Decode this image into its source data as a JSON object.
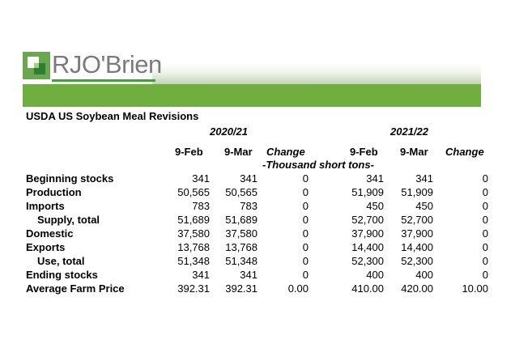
{
  "brand": {
    "logo_text": "RJO'Brien"
  },
  "table": {
    "title": "USDA US Soybean Meal Revisions",
    "year_a": "2020/21",
    "year_b": "2021/22",
    "columns": [
      "9-Feb",
      "9-Mar",
      "Change",
      "9-Feb",
      "9-Mar",
      "Change"
    ],
    "units": "-Thousand short tons-",
    "rows": [
      {
        "label": "Beginning stocks",
        "values": [
          "341",
          "341",
          "0",
          "341",
          "341",
          "0"
        ]
      },
      {
        "label": "Production",
        "values": [
          "50,565",
          "50,565",
          "0",
          "51,909",
          "51,909",
          "0"
        ]
      },
      {
        "label": "Imports",
        "values": [
          "783",
          "783",
          "0",
          "450",
          "450",
          "0"
        ]
      },
      {
        "label": "Supply, total",
        "values": [
          "51,689",
          "51,689",
          "0",
          "52,700",
          "52,700",
          "0"
        ]
      },
      {
        "label": "Domestic",
        "values": [
          "37,580",
          "37,580",
          "0",
          "37,900",
          "37,900",
          "0"
        ]
      },
      {
        "label": "Exports",
        "values": [
          "13,768",
          "13,768",
          "0",
          "14,400",
          "14,400",
          "0"
        ]
      },
      {
        "label": "Use, total",
        "values": [
          "51,348",
          "51,348",
          "0",
          "52,300",
          "52,300",
          "0"
        ]
      },
      {
        "label": "Ending stocks",
        "values": [
          "341",
          "341",
          "0",
          "400",
          "400",
          "0"
        ]
      },
      {
        "label": "Average Farm Price",
        "values": [
          "392.31",
          "392.31",
          "0.00",
          "410.00",
          "420.00",
          "10.00"
        ]
      }
    ]
  },
  "colors": {
    "brand_green": "#6fae3f",
    "logo_gray": "#7b7b7b"
  }
}
